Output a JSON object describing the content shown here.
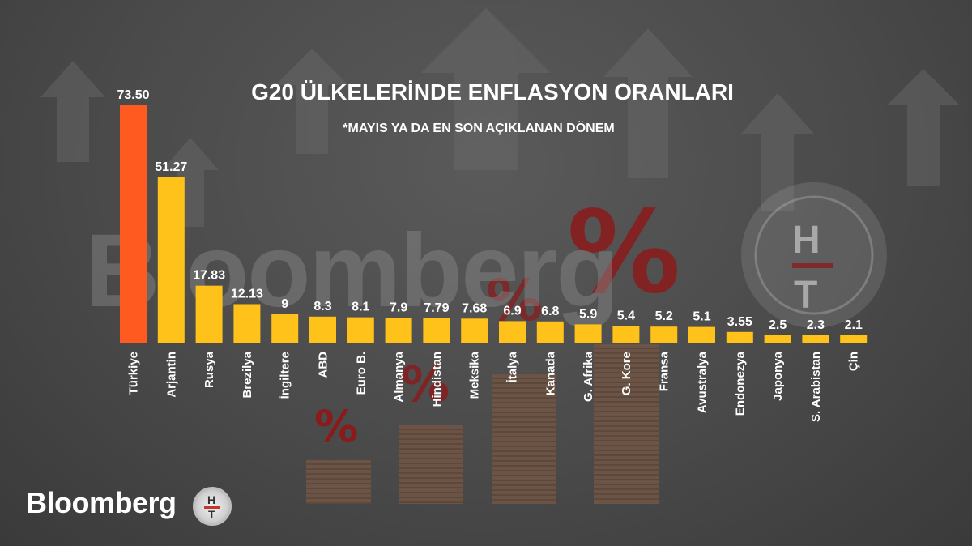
{
  "chart_data": {
    "type": "bar",
    "title": "G20 ÜLKELERİNDE ENFLASYON ORANLARI",
    "subtitle": "*MAYIS YA DA EN SON AÇIKLANAN DÖNEM",
    "categories": [
      "Türkiye",
      "Arjantin",
      "Rusya",
      "Brezilya",
      "İngiltere",
      "ABD",
      "Euro B.",
      "Almanya",
      "Hindistan",
      "Meksika",
      "İtalya",
      "Kanada",
      "G. Afrika",
      "G. Kore",
      "Fransa",
      "Avustralya",
      "Endonezya",
      "Japonya",
      "S. Arabistan",
      "Çin"
    ],
    "values": [
      73.5,
      51.27,
      17.83,
      12.13,
      9,
      8.3,
      8.1,
      7.9,
      7.79,
      7.68,
      6.9,
      6.8,
      5.9,
      5.4,
      5.2,
      5.1,
      3.55,
      2.5,
      2.3,
      2.1
    ],
    "value_labels": [
      "73.50",
      "51.27",
      "17.83",
      "12.13",
      "9",
      "8.3",
      "8.1",
      "7.9",
      "7.79",
      "7.68",
      "6.9",
      "6.8",
      "5.9",
      "5.4",
      "5.2",
      "5.1",
      "3.55",
      "2.5",
      "2.3",
      "2.1"
    ],
    "xlabel": "",
    "ylabel": "",
    "ylim": [
      0,
      75
    ],
    "grid": false,
    "legend": "none",
    "colors": {
      "highlight": "#ff5a1f",
      "bar": "#ffc21a",
      "text": "#ffffff",
      "background": "#4a4a4a",
      "accent_red": "#8b1a1a"
    }
  },
  "watermark": {
    "text": "Bloomberg",
    "symbol": "%"
  },
  "footer": {
    "brand": "Bloomberg",
    "logo_letters": {
      "top": "H",
      "bottom": "T"
    }
  }
}
